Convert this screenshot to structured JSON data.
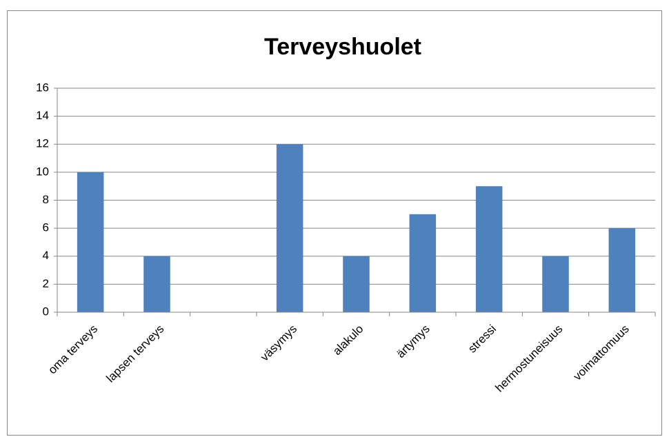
{
  "chart_data": {
    "type": "bar",
    "title": "Terveyshuolet",
    "categories": [
      "oma terveys",
      "lapsen terveys",
      null,
      "väsymys",
      "alakulo",
      "ärtymys",
      "stressi",
      "hermostuneisuus",
      "voimattomuus"
    ],
    "values": [
      10,
      4,
      0,
      12,
      4,
      7,
      9,
      4,
      6
    ],
    "color": "#4f81bd",
    "ylim": [
      0,
      16
    ],
    "yticks": [
      0,
      2,
      4,
      6,
      8,
      10,
      12,
      14,
      16
    ],
    "grid": true
  }
}
